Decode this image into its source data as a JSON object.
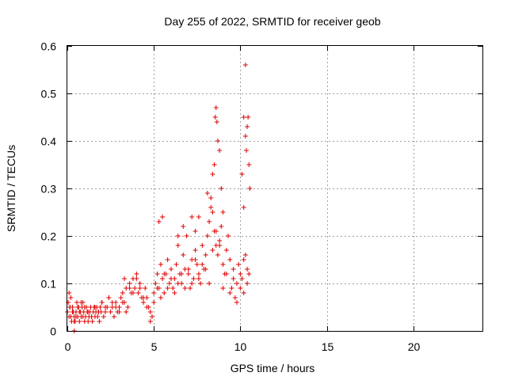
{
  "chart_data": {
    "type": "scatter",
    "title": "Day 255 of 2022, SRMTID for receiver geob",
    "xlabel": "GPS time / hours",
    "ylabel": "SRMTID / TECUs",
    "xlim": [
      0,
      24
    ],
    "ylim": [
      0,
      0.6
    ],
    "x_ticks": [
      0,
      5,
      10,
      15,
      20
    ],
    "x_tick_labels": [
      "0",
      "5",
      "10",
      "15",
      "20"
    ],
    "y_ticks": [
      0,
      0.1,
      0.2,
      0.3,
      0.4,
      0.5,
      0.6
    ],
    "y_tick_labels": [
      "0",
      "0.1",
      "0.2",
      "0.3",
      "0.4",
      "0.5",
      "0.6"
    ],
    "grid": true,
    "marker": "plus",
    "color": "#e00000",
    "series": [
      {
        "name": "SRMTID",
        "x": [
          0.0,
          0.05,
          0.1,
          0.15,
          0.2,
          0.25,
          0.3,
          0.35,
          0.4,
          0.45,
          0.5,
          0.55,
          0.6,
          0.65,
          0.7,
          0.75,
          0.8,
          0.85,
          0.9,
          0.95,
          1.0,
          1.05,
          1.1,
          1.15,
          1.2,
          1.25,
          1.3,
          1.35,
          1.4,
          1.45,
          1.5,
          1.55,
          1.6,
          1.65,
          1.7,
          1.75,
          1.8,
          1.85,
          1.9,
          1.95,
          2.0,
          2.1,
          2.2,
          2.3,
          2.4,
          2.5,
          2.6,
          2.7,
          2.8,
          2.9,
          3.0,
          3.1,
          3.2,
          3.3,
          3.4,
          3.5,
          3.6,
          3.7,
          3.8,
          3.9,
          4.0,
          4.1,
          4.2,
          4.3,
          4.4,
          4.5,
          4.6,
          4.7,
          4.8,
          4.9,
          5.0,
          5.1,
          5.2,
          5.3,
          5.4,
          5.5,
          5.6,
          5.7,
          5.8,
          5.9,
          6.0,
          6.1,
          6.2,
          6.3,
          6.4,
          6.5,
          6.6,
          6.7,
          6.8,
          6.9,
          7.0,
          7.1,
          7.2,
          7.3,
          7.4,
          7.5,
          7.6,
          7.7,
          7.8,
          7.9,
          8.0,
          8.1,
          8.2,
          8.3,
          8.4,
          8.5,
          8.6,
          8.7,
          8.8,
          8.9,
          9.0,
          9.1,
          9.2,
          9.3,
          9.4,
          9.5,
          9.6,
          9.7,
          9.8,
          9.9,
          10.0,
          10.1,
          10.2,
          10.3,
          10.4,
          10.5,
          0.1,
          0.15,
          0.2,
          0.3,
          0.4,
          0.5,
          0.6,
          0.7,
          0.8,
          0.9,
          1.0,
          1.2,
          1.4,
          1.6,
          1.8,
          2.0,
          2.2,
          2.4,
          2.6,
          2.8,
          3.0,
          3.2,
          3.4,
          3.6,
          3.8,
          4.0,
          4.2,
          4.4,
          4.6,
          4.8,
          5.0,
          5.2,
          5.4,
          5.6,
          5.8,
          6.0,
          6.2,
          6.4,
          6.6,
          6.8,
          7.0,
          7.2,
          7.4,
          7.6,
          7.8,
          8.0,
          8.2,
          8.4,
          8.6,
          8.8,
          9.0,
          9.2,
          9.4,
          9.6,
          9.8,
          10.0,
          10.2,
          10.4,
          0.4,
          3.3,
          5.3,
          5.5,
          6.4,
          6.7,
          7.2,
          7.4,
          7.6,
          8.1,
          8.3,
          8.4,
          8.5,
          8.55,
          8.6,
          8.65,
          8.7,
          8.8,
          8.9,
          9.0,
          10.1,
          10.2,
          10.3,
          10.35,
          10.4,
          10.45,
          10.5,
          10.55,
          10.2,
          10.3
        ],
        "y": [
          0.04,
          0.06,
          0.08,
          0.05,
          0.03,
          0.02,
          0.05,
          0.04,
          0.03,
          0.02,
          0.04,
          0.06,
          0.03,
          0.05,
          0.02,
          0.04,
          0.03,
          0.05,
          0.06,
          0.04,
          0.02,
          0.03,
          0.05,
          0.04,
          0.02,
          0.03,
          0.04,
          0.05,
          0.03,
          0.02,
          0.04,
          0.05,
          0.03,
          0.04,
          0.05,
          0.03,
          0.04,
          0.02,
          0.05,
          0.04,
          0.06,
          0.03,
          0.04,
          0.05,
          0.07,
          0.04,
          0.05,
          0.03,
          0.06,
          0.04,
          0.05,
          0.07,
          0.08,
          0.06,
          0.04,
          0.05,
          0.09,
          0.08,
          0.11,
          0.09,
          0.12,
          0.08,
          0.1,
          0.07,
          0.06,
          0.09,
          0.07,
          0.05,
          0.04,
          0.03,
          0.08,
          0.1,
          0.12,
          0.09,
          0.14,
          0.11,
          0.08,
          0.12,
          0.15,
          0.1,
          0.13,
          0.09,
          0.11,
          0.14,
          0.18,
          0.12,
          0.1,
          0.16,
          0.13,
          0.2,
          0.12,
          0.09,
          0.15,
          0.11,
          0.17,
          0.14,
          0.12,
          0.1,
          0.18,
          0.13,
          0.16,
          0.2,
          0.23,
          0.26,
          0.25,
          0.21,
          0.18,
          0.16,
          0.19,
          0.22,
          0.14,
          0.12,
          0.17,
          0.2,
          0.15,
          0.09,
          0.13,
          0.07,
          0.1,
          0.14,
          0.12,
          0.11,
          0.15,
          0.16,
          0.13,
          0.12,
          0.03,
          0.05,
          0.07,
          0.04,
          0.02,
          0.03,
          0.05,
          0.04,
          0.06,
          0.03,
          0.05,
          0.04,
          0.03,
          0.05,
          0.04,
          0.06,
          0.05,
          0.07,
          0.06,
          0.05,
          0.04,
          0.06,
          0.09,
          0.1,
          0.08,
          0.11,
          0.09,
          0.07,
          0.05,
          0.02,
          0.06,
          0.09,
          0.07,
          0.12,
          0.09,
          0.11,
          0.08,
          0.1,
          0.12,
          0.09,
          0.13,
          0.1,
          0.15,
          0.11,
          0.14,
          0.13,
          0.1,
          0.17,
          0.21,
          0.18,
          0.09,
          0.12,
          0.08,
          0.11,
          0.06,
          0.09,
          0.08,
          0.1,
          0.0,
          0.11,
          0.23,
          0.24,
          0.2,
          0.22,
          0.24,
          0.21,
          0.24,
          0.29,
          0.28,
          0.33,
          0.35,
          0.45,
          0.47,
          0.44,
          0.4,
          0.38,
          0.3,
          0.25,
          0.33,
          0.45,
          0.41,
          0.38,
          0.43,
          0.45,
          0.35,
          0.3,
          0.26,
          0.56
        ]
      }
    ]
  }
}
